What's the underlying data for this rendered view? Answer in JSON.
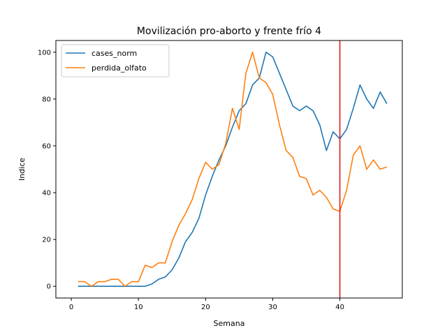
{
  "chart_data": {
    "type": "line",
    "title": "Movilización pro-aborto y frente frío 4",
    "xlabel": "Semana",
    "ylabel": "Indice",
    "xlim": [
      -2.3,
      49.3
    ],
    "ylim": [
      -5,
      105
    ],
    "x_ticks": [
      0,
      10,
      20,
      30,
      40
    ],
    "y_ticks": [
      0,
      20,
      40,
      60,
      80,
      100
    ],
    "grid": false,
    "legend": "top-left",
    "x": [
      1,
      2,
      3,
      4,
      5,
      6,
      7,
      8,
      9,
      10,
      11,
      12,
      13,
      14,
      15,
      16,
      17,
      18,
      19,
      20,
      21,
      22,
      23,
      24,
      25,
      26,
      27,
      28,
      29,
      30,
      31,
      32,
      33,
      34,
      35,
      36,
      37,
      38,
      39,
      40,
      41,
      42,
      43,
      44,
      45,
      46,
      47
    ],
    "series": [
      {
        "name": "cases_norm",
        "color": "#1f77b4",
        "values": [
          0,
          0,
          0,
          0,
          0,
          0,
          0,
          0,
          0,
          0,
          0,
          1,
          3,
          4,
          7,
          12,
          19,
          23,
          29,
          39,
          47,
          54,
          60,
          68,
          75,
          78,
          86,
          89,
          100,
          98,
          91,
          84,
          77,
          75,
          77,
          75,
          69,
          58,
          66,
          63,
          67,
          76,
          86,
          80,
          76,
          83,
          78
        ]
      },
      {
        "name": "perdida_olfato",
        "color": "#ff7f0e",
        "values": [
          2,
          2,
          0,
          2,
          2,
          3,
          3,
          0,
          2,
          2,
          9,
          8,
          10,
          10,
          19,
          26,
          31,
          37,
          46,
          53,
          50,
          52,
          61,
          76,
          67,
          91,
          100,
          89,
          87,
          82,
          69,
          58,
          55,
          47,
          46,
          39,
          41,
          38,
          33,
          32,
          41,
          56,
          60,
          50,
          54,
          50,
          51
        ]
      }
    ],
    "vline": {
      "x": 40,
      "color": "#e31a1c"
    }
  }
}
